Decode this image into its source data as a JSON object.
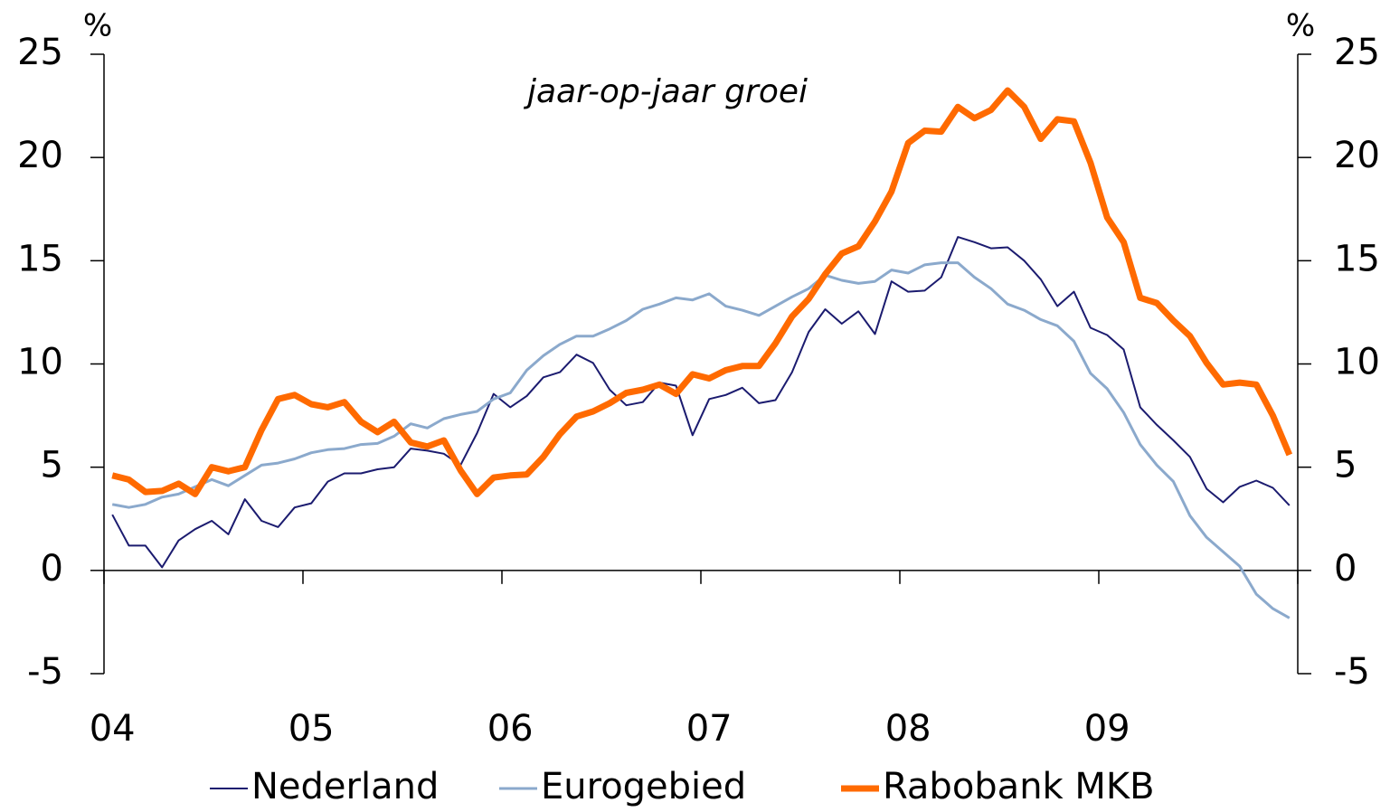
{
  "chart_data": {
    "type": "line",
    "annotation": "jaar-op-jaar groei",
    "y_label": "%",
    "y2_label": "%",
    "categories": [
      "04",
      null,
      null,
      null,
      null,
      null,
      null,
      null,
      null,
      null,
      null,
      null,
      "05",
      null,
      null,
      null,
      null,
      null,
      null,
      null,
      null,
      null,
      null,
      null,
      "06",
      null,
      null,
      null,
      null,
      null,
      null,
      null,
      null,
      null,
      null,
      null,
      "07",
      null,
      null,
      null,
      null,
      null,
      null,
      null,
      null,
      null,
      null,
      null,
      "08",
      null,
      null,
      null,
      null,
      null,
      null,
      null,
      null,
      null,
      null,
      null,
      "09",
      null,
      null,
      null,
      null,
      null,
      null,
      null,
      null,
      null,
      null,
      null
    ],
    "series": [
      {
        "name": "Nederland",
        "color": "#1b1b6f",
        "values": [
          2.7,
          1.2,
          1.2,
          0.15,
          1.45,
          2.0,
          2.4,
          1.75,
          3.45,
          2.4,
          2.1,
          3.05,
          3.25,
          4.3,
          4.7,
          4.7,
          4.9,
          5.0,
          5.9,
          5.8,
          5.65,
          5.1,
          6.65,
          8.55,
          7.9,
          8.45,
          9.35,
          9.6,
          10.45,
          10.05,
          8.75,
          8.0,
          8.15,
          9.1,
          8.95,
          6.55,
          8.3,
          8.5,
          8.85,
          8.1,
          8.25,
          9.6,
          11.55,
          12.65,
          11.95,
          12.55,
          11.45,
          14.0,
          13.5,
          13.55,
          14.2,
          16.15,
          15.9,
          15.6,
          15.65,
          15.0,
          14.1,
          12.8,
          13.5,
          11.75,
          11.4,
          10.7,
          7.9,
          7.05,
          6.3,
          5.5,
          3.95,
          3.3,
          4.05,
          4.35,
          4.0,
          3.15
        ]
      },
      {
        "name": "Eurogebied",
        "color": "#8ba9cc",
        "values": [
          3.2,
          3.05,
          3.2,
          3.55,
          3.7,
          4.05,
          4.4,
          4.1,
          4.6,
          5.1,
          5.2,
          5.4,
          5.7,
          5.85,
          5.9,
          6.1,
          6.15,
          6.5,
          7.1,
          6.9,
          7.35,
          7.55,
          7.7,
          8.3,
          8.6,
          9.7,
          10.4,
          10.95,
          11.35,
          11.35,
          11.7,
          12.1,
          12.65,
          12.9,
          13.2,
          13.1,
          13.4,
          12.8,
          12.6,
          12.35,
          12.8,
          13.25,
          13.65,
          14.3,
          14.05,
          13.9,
          14.0,
          14.55,
          14.4,
          14.8,
          14.9,
          14.9,
          14.2,
          13.65,
          12.9,
          12.6,
          12.15,
          11.85,
          11.1,
          9.55,
          8.8,
          7.65,
          6.1,
          5.1,
          4.3,
          2.65,
          1.6,
          0.9,
          0.2,
          -1.15,
          -1.85,
          -2.3
        ]
      },
      {
        "name": "Rabobank MKB",
        "color": "#ff6a00",
        "values": [
          4.6,
          4.4,
          3.8,
          3.85,
          4.2,
          3.7,
          5.0,
          4.8,
          5.0,
          6.8,
          8.3,
          8.5,
          8.05,
          7.9,
          8.15,
          7.2,
          6.7,
          7.2,
          6.2,
          6.0,
          6.3,
          4.85,
          3.7,
          4.5,
          4.6,
          4.65,
          5.5,
          6.6,
          7.45,
          7.7,
          8.1,
          8.6,
          8.75,
          9.0,
          8.55,
          9.5,
          9.3,
          9.7,
          9.9,
          9.9,
          11.0,
          12.3,
          13.15,
          14.35,
          15.35,
          15.7,
          16.9,
          18.35,
          20.7,
          21.3,
          21.25,
          22.45,
          21.9,
          22.3,
          23.25,
          22.45,
          20.9,
          21.85,
          21.75,
          19.75,
          17.1,
          15.9,
          13.2,
          12.95,
          12.1,
          11.35,
          10.05,
          9.0,
          9.1,
          9.0,
          7.5,
          5.6
        ]
      }
    ],
    "ylim": [
      -5,
      25
    ],
    "yticks": [
      -5,
      0,
      5,
      10,
      15,
      20,
      25
    ],
    "y2lim": [
      -5,
      25
    ],
    "y2ticks": [
      -5,
      0,
      5,
      10,
      15,
      20,
      25
    ],
    "grid": false,
    "legend": "bottom"
  }
}
